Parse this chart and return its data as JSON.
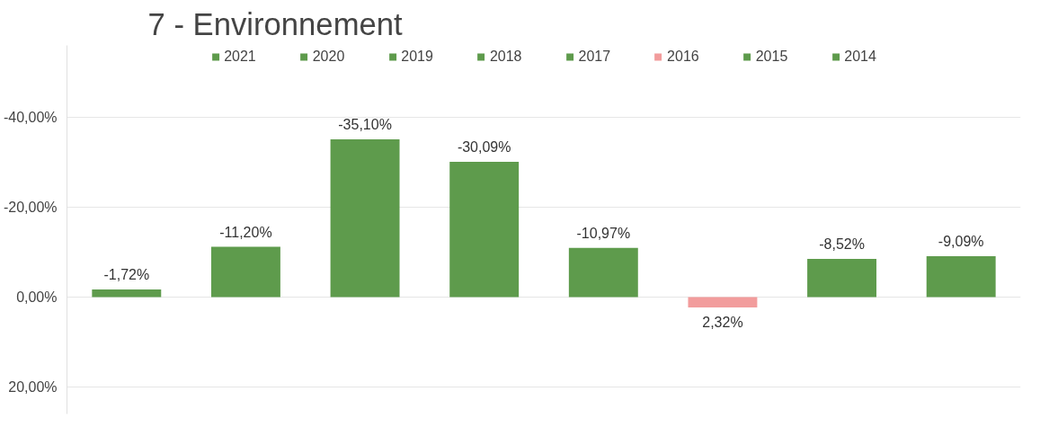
{
  "chart_data": {
    "type": "bar",
    "title": "7 - Environnement",
    "categories": [
      null,
      null,
      null,
      null,
      null,
      null,
      null,
      null
    ],
    "series": [
      {
        "name": "2021",
        "color": "#5e9b4c",
        "values": [
          -1.72,
          null,
          null,
          null,
          null,
          null,
          null,
          null
        ],
        "value_labels": [
          "-1,72%",
          null,
          null,
          null,
          null,
          null,
          null,
          null
        ]
      },
      {
        "name": "2020",
        "color": "#5e9b4c",
        "values": [
          null,
          -11.2,
          null,
          null,
          null,
          null,
          null,
          null
        ],
        "value_labels": [
          null,
          "-11,20%",
          null,
          null,
          null,
          null,
          null,
          null
        ]
      },
      {
        "name": "2019",
        "color": "#5e9b4c",
        "values": [
          null,
          null,
          -35.1,
          null,
          null,
          null,
          null,
          null
        ],
        "value_labels": [
          null,
          null,
          "-35,10%",
          null,
          null,
          null,
          null,
          null
        ]
      },
      {
        "name": "2018",
        "color": "#5e9b4c",
        "values": [
          null,
          null,
          null,
          -30.09,
          null,
          null,
          null,
          null
        ],
        "value_labels": [
          null,
          null,
          null,
          "-30,09%",
          null,
          null,
          null,
          null
        ]
      },
      {
        "name": "2017",
        "color": "#5e9b4c",
        "values": [
          null,
          null,
          null,
          null,
          -10.97,
          null,
          null,
          null
        ],
        "value_labels": [
          null,
          null,
          null,
          null,
          "-10,97%",
          null,
          null,
          null
        ]
      },
      {
        "name": "2016",
        "color": "#f29c9c",
        "values": [
          null,
          null,
          null,
          null,
          null,
          2.32,
          null,
          null
        ],
        "value_labels": [
          null,
          null,
          null,
          null,
          null,
          "2,32%",
          null,
          null
        ]
      },
      {
        "name": "2015",
        "color": "#5e9b4c",
        "values": [
          null,
          null,
          null,
          null,
          null,
          null,
          -8.52,
          null
        ],
        "value_labels": [
          null,
          null,
          null,
          null,
          null,
          null,
          "-8,52%",
          null
        ]
      },
      {
        "name": "2014",
        "color": "#5e9b4c",
        "values": [
          null,
          null,
          null,
          null,
          null,
          null,
          null,
          -9.09
        ],
        "value_labels": [
          null,
          null,
          null,
          null,
          null,
          null,
          null,
          "-9,09%"
        ]
      }
    ],
    "ylim": [
      26,
      -56
    ],
    "yticks": [
      {
        "value": -40,
        "label": "-40,00%"
      },
      {
        "value": -20,
        "label": "-20,00%"
      },
      {
        "value": 0,
        "label": "0,00%"
      },
      {
        "value": 20,
        "label": "20,00%"
      }
    ],
    "grid": "y",
    "legend": "top",
    "tick_labels": "y"
  }
}
